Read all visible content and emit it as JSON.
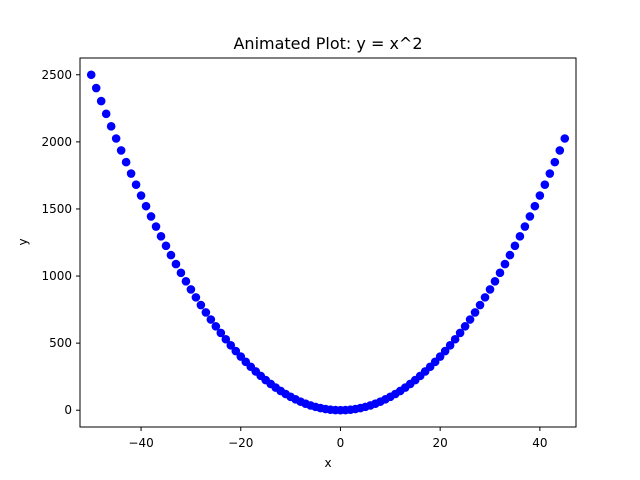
{
  "chart_data": {
    "type": "scatter",
    "title": "Animated Plot: y = x^2",
    "xlabel": "x",
    "ylabel": "y",
    "xlim": [
      -52.25,
      47.25
    ],
    "ylim": [
      -125,
      2625
    ],
    "xticks": [
      -40,
      -20,
      0,
      20,
      40
    ],
    "xtick_labels": [
      "−40",
      "−20",
      "0",
      "20",
      "40"
    ],
    "yticks": [
      0,
      500,
      1000,
      1500,
      2000,
      2500
    ],
    "ytick_labels": [
      "0",
      "500",
      "1000",
      "1500",
      "2000",
      "2500"
    ],
    "grid": false,
    "legend": "none",
    "marker_color": "#0000ff",
    "x": [
      -50,
      -49,
      -48,
      -47,
      -46,
      -45,
      -44,
      -43,
      -42,
      -41,
      -40,
      -39,
      -38,
      -37,
      -36,
      -35,
      -34,
      -33,
      -32,
      -31,
      -30,
      -29,
      -28,
      -27,
      -26,
      -25,
      -24,
      -23,
      -22,
      -21,
      -20,
      -19,
      -18,
      -17,
      -16,
      -15,
      -14,
      -13,
      -12,
      -11,
      -10,
      -9,
      -8,
      -7,
      -6,
      -5,
      -4,
      -3,
      -2,
      -1,
      0,
      1,
      2,
      3,
      4,
      5,
      6,
      7,
      8,
      9,
      10,
      11,
      12,
      13,
      14,
      15,
      16,
      17,
      18,
      19,
      20,
      21,
      22,
      23,
      24,
      25,
      26,
      27,
      28,
      29,
      30,
      31,
      32,
      33,
      34,
      35,
      36,
      37,
      38,
      39,
      40,
      41,
      42,
      43,
      44,
      45
    ],
    "y": [
      2500,
      2401,
      2304,
      2209,
      2116,
      2025,
      1936,
      1849,
      1764,
      1681,
      1600,
      1521,
      1444,
      1369,
      1296,
      1225,
      1156,
      1089,
      1024,
      961,
      900,
      841,
      784,
      729,
      676,
      625,
      576,
      529,
      484,
      441,
      400,
      361,
      324,
      289,
      256,
      225,
      196,
      169,
      144,
      121,
      100,
      81,
      64,
      49,
      36,
      25,
      16,
      9,
      4,
      1,
      0,
      1,
      4,
      9,
      16,
      25,
      36,
      49,
      64,
      81,
      100,
      121,
      144,
      169,
      196,
      225,
      256,
      289,
      324,
      361,
      400,
      441,
      484,
      529,
      576,
      625,
      676,
      729,
      784,
      841,
      900,
      961,
      1024,
      1089,
      1156,
      1225,
      1296,
      1369,
      1444,
      1521,
      1600,
      1681,
      1764,
      1849,
      1936,
      2025
    ]
  }
}
